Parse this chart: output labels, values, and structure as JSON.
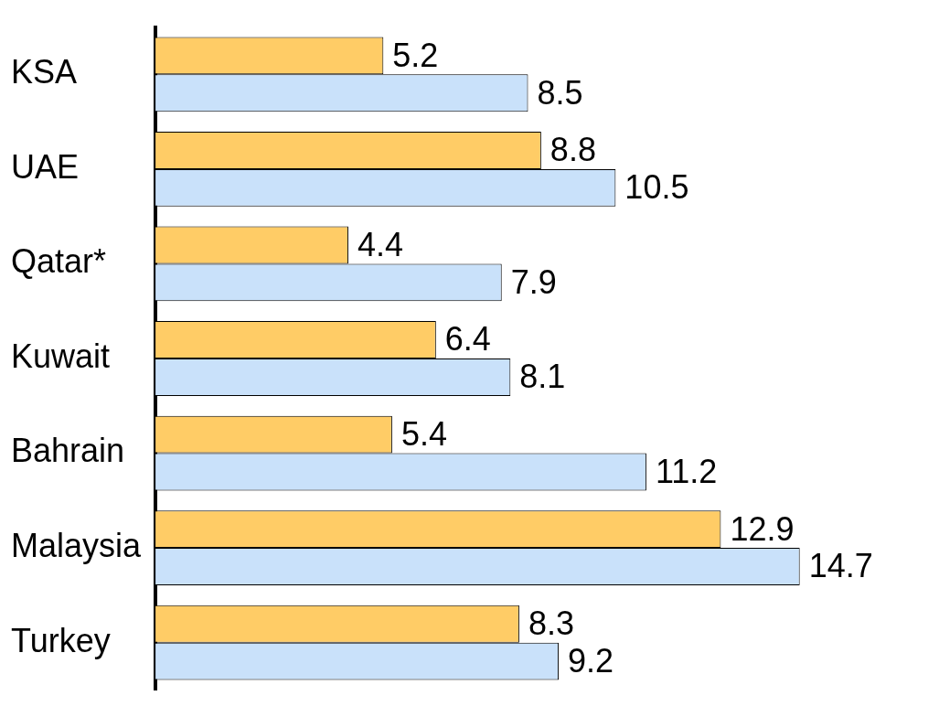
{
  "chart_data": {
    "type": "bar",
    "orientation": "horizontal",
    "categories": [
      "KSA",
      "UAE",
      "Qatar*",
      "Kuwait",
      "Bahrain",
      "Malaysia",
      "Turkey"
    ],
    "series": [
      {
        "color": "#ffcc66",
        "values": [
          5.2,
          8.8,
          4.4,
          6.4,
          5.4,
          12.9,
          8.3
        ]
      },
      {
        "color": "#c9e1fa",
        "values": [
          8.5,
          10.5,
          7.9,
          8.1,
          11.2,
          14.7,
          9.2
        ]
      }
    ],
    "data_labels": true,
    "tick_labels": "y",
    "legend": false
  }
}
